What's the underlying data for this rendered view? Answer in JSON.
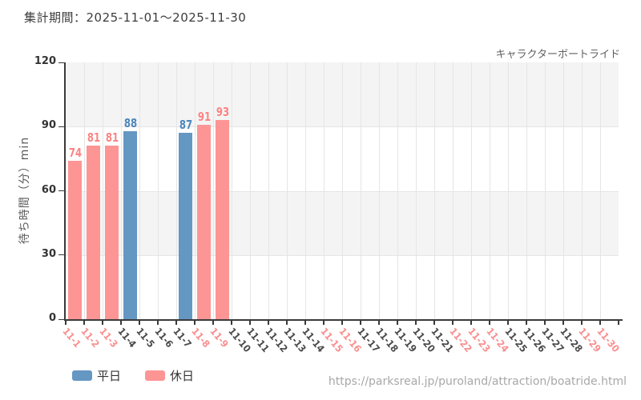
{
  "title": "集計期間：2025-11-01～2025-11-30",
  "attraction": "キャラクターボートライド",
  "url": "https://parksreal.jp/puroland/attraction/boatride.html",
  "legend": {
    "weekday_label": "平日",
    "holiday_label": "休日"
  },
  "colors": {
    "weekday_bar": "#6597c3",
    "holiday_bar": "#fd9595",
    "weekday_value_label": "#4d87bd",
    "holiday_value_label": "#fb8484",
    "x_label_weekday": "#4a4a4a",
    "x_label_holiday": "#f98f8f",
    "axis": "#3a3a3a",
    "band": "#f4f4f4",
    "gridline": "#e5e5e5"
  },
  "chart_data": {
    "type": "bar",
    "title": "キャラクターボートライド",
    "xlabel": "",
    "ylabel": "待ち時間（分）min",
    "ylim": [
      0,
      120
    ],
    "yticks": [
      0,
      30,
      60,
      90,
      120
    ],
    "grid": "on",
    "legend_position": "bottom-left",
    "categories": [
      "11-1",
      "11-2",
      "11-3",
      "11-4",
      "11-5",
      "11-6",
      "11-7",
      "11-8",
      "11-9",
      "11-10",
      "11-11",
      "11-12",
      "11-13",
      "11-14",
      "11-15",
      "11-16",
      "11-17",
      "11-18",
      "11-19",
      "11-20",
      "11-21",
      "11-22",
      "11-23",
      "11-24",
      "11-25",
      "11-26",
      "11-27",
      "11-28",
      "11-29",
      "11-30"
    ],
    "holiday_indices": [
      0,
      1,
      2,
      7,
      8,
      14,
      15,
      21,
      22,
      23,
      28,
      29
    ],
    "series": [
      {
        "name": "平日",
        "values": [
          null,
          null,
          null,
          88,
          null,
          null,
          87,
          null,
          null,
          null,
          null,
          null,
          null,
          null,
          null,
          null,
          null,
          null,
          null,
          null,
          null,
          null,
          null,
          null,
          null,
          null,
          null,
          null,
          null,
          null
        ]
      },
      {
        "name": "休日",
        "values": [
          74,
          81,
          81,
          null,
          null,
          null,
          null,
          91,
          93,
          null,
          null,
          null,
          null,
          null,
          null,
          null,
          null,
          null,
          null,
          null,
          null,
          null,
          null,
          null,
          null,
          null,
          null,
          null,
          null,
          null
        ]
      }
    ]
  }
}
